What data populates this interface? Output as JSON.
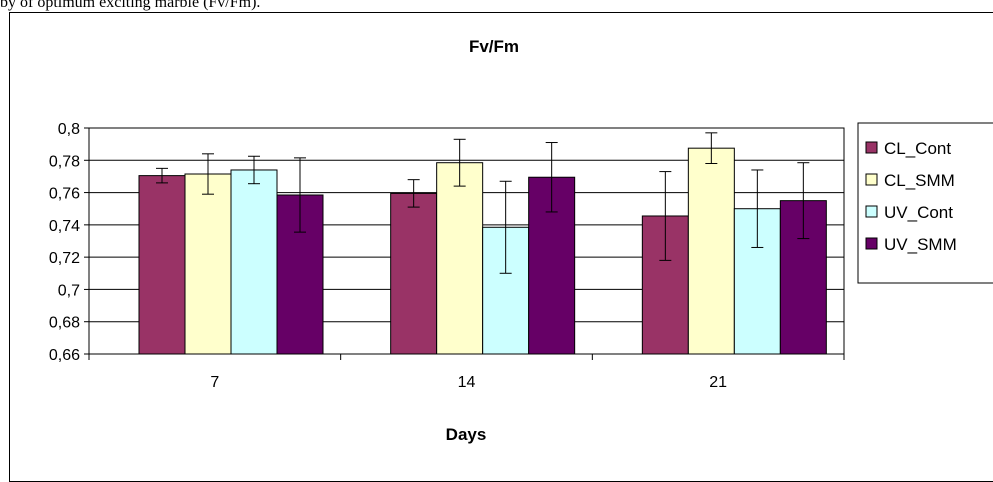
{
  "caption": "by of optimum exciting marble (Fv/Fm).",
  "chart_data": {
    "type": "bar",
    "title": "Fv/Fm",
    "xlabel": "Days",
    "ylabel": "",
    "ylim": [
      0.66,
      0.8
    ],
    "yticks": [
      "0,8",
      "0,78",
      "0,76",
      "0,74",
      "0,72",
      "0,7",
      "0,68",
      "0,66"
    ],
    "ytick_values": [
      0.8,
      0.78,
      0.76,
      0.74,
      0.72,
      0.7,
      0.68,
      0.66
    ],
    "categories": [
      "7",
      "14",
      "21"
    ],
    "grid": true,
    "legend_placement": "right",
    "series": [
      {
        "name": "CL_Cont",
        "color": "#993366",
        "values": [
          0.7705,
          0.7595,
          0.7455
        ],
        "errors": [
          0.0045,
          0.0085,
          0.0275
        ]
      },
      {
        "name": "CL_SMM",
        "color": "#FFFFCC",
        "values": [
          0.7715,
          0.7785,
          0.7875
        ],
        "errors": [
          0.0125,
          0.0145,
          0.0095
        ]
      },
      {
        "name": "UV_Cont",
        "color": "#CCFFFF",
        "values": [
          0.774,
          0.7385,
          0.75
        ],
        "errors": [
          0.0085,
          0.0285,
          0.024
        ]
      },
      {
        "name": "UV_SMM",
        "color": "#660066",
        "values": [
          0.7585,
          0.7695,
          0.755
        ],
        "errors": [
          0.023,
          0.0215,
          0.0235
        ]
      }
    ]
  }
}
